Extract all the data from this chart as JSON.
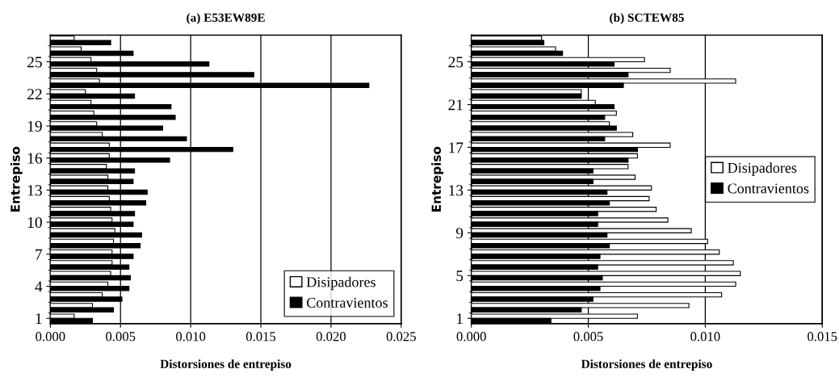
{
  "chart_data": [
    {
      "type": "bar",
      "orientation": "horizontal",
      "title": "(a) E53EW89E",
      "xlabel": "Distorsiones de entrepiso",
      "ylabel": "Entrepiso",
      "categories": [
        null,
        null,
        "25",
        null,
        null,
        "22",
        null,
        null,
        "19",
        null,
        null,
        "16",
        null,
        null,
        "13",
        null,
        null,
        "10",
        null,
        null,
        "7",
        null,
        null,
        "4",
        null,
        null,
        "1"
      ],
      "series": [
        {
          "name": "Disipadores",
          "color": "#ffffff",
          "values": [
            0.0017,
            0.0022,
            0.0029,
            0.0033,
            0.0035,
            0.0025,
            0.0029,
            0.0031,
            0.0033,
            0.0037,
            0.0042,
            0.0042,
            0.004,
            0.0041,
            0.0041,
            0.0042,
            0.0043,
            0.0044,
            0.0046,
            0.0045,
            0.0044,
            0.0044,
            0.0043,
            0.0041,
            0.0037,
            0.003,
            0.0017
          ]
        },
        {
          "name": "Contravientos",
          "color": "#000000",
          "values": [
            0.0043,
            0.0059,
            0.0113,
            0.0145,
            0.0227,
            0.006,
            0.0086,
            0.0089,
            0.008,
            0.0097,
            0.013,
            0.0085,
            0.006,
            0.0059,
            0.0069,
            0.0068,
            0.006,
            0.0059,
            0.0065,
            0.0064,
            0.0059,
            0.0056,
            0.0057,
            0.0056,
            0.0051,
            0.0045,
            0.003
          ]
        }
      ],
      "xlim": [
        0,
        0.025
      ],
      "xticks": [
        {
          "value": 0,
          "label": "0.000"
        },
        {
          "value": 0.005,
          "label": "0.005"
        },
        {
          "value": 0.01,
          "label": "0.010"
        },
        {
          "value": 0.015,
          "label": "0.015"
        },
        {
          "value": 0.02,
          "label": "0.020"
        },
        {
          "value": 0.025,
          "label": "0.025"
        }
      ],
      "grid": "x",
      "legend": "bottom right"
    },
    {
      "type": "bar",
      "orientation": "horizontal",
      "title": "(b) SCTEW85",
      "xlabel": "Distorsiones de entrepiso",
      "ylabel": "Entrepiso",
      "categories": [
        null,
        null,
        "25",
        null,
        null,
        null,
        "21",
        null,
        null,
        null,
        "17",
        null,
        null,
        null,
        "13",
        null,
        null,
        null,
        "9",
        null,
        null,
        null,
        "5",
        null,
        null,
        null,
        "1"
      ],
      "series": [
        {
          "name": "Disipadores",
          "color": "#ffffff",
          "values": [
            0.003,
            0.0036,
            0.0074,
            0.0085,
            0.0113,
            0.0047,
            0.0053,
            0.0062,
            0.0059,
            0.0069,
            0.0085,
            0.0071,
            0.0067,
            0.007,
            0.0077,
            0.0076,
            0.0079,
            0.0084,
            0.0094,
            0.0101,
            0.0106,
            0.0112,
            0.0115,
            0.0113,
            0.0107,
            0.0093,
            0.0071
          ]
        },
        {
          "name": "Contravientos",
          "color": "#000000",
          "values": [
            0.0031,
            0.0039,
            0.0061,
            0.0067,
            0.0065,
            0.0047,
            0.0061,
            0.0057,
            0.0062,
            0.0057,
            0.0071,
            0.0067,
            0.0052,
            0.0052,
            0.0058,
            0.0059,
            0.0054,
            0.0054,
            0.0058,
            0.0059,
            0.0055,
            0.0054,
            0.0056,
            0.0055,
            0.0052,
            0.0047,
            0.0034
          ]
        }
      ],
      "xlim": [
        0,
        0.015
      ],
      "xticks": [
        {
          "value": 0,
          "label": "0.000"
        },
        {
          "value": 0.005,
          "label": "0.005"
        },
        {
          "value": 0.01,
          "label": "0.010"
        },
        {
          "value": 0.015,
          "label": "0.015"
        }
      ],
      "grid": "x",
      "legend": "center right"
    }
  ]
}
